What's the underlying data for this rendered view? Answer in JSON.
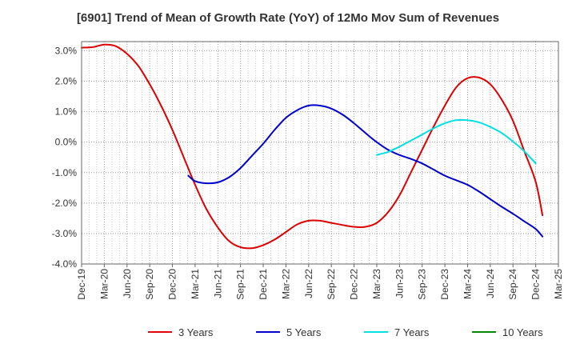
{
  "chart_data": {
    "type": "line",
    "title": "[6901]  Trend of Mean of Growth Rate (YoY) of 12Mo Mov Sum of Revenues",
    "xlabel": "",
    "ylabel": "",
    "ylim": [
      -4.0,
      3.3
    ],
    "yticks": [
      "3.0%",
      "2.0%",
      "1.0%",
      "0.0%",
      "-1.0%",
      "-2.0%",
      "-3.0%",
      "-4.0%"
    ],
    "ytick_values": [
      3.0,
      2.0,
      1.0,
      0.0,
      -1.0,
      -2.0,
      -3.0,
      -4.0
    ],
    "xticks": [
      "Dec-19",
      "Mar-20",
      "Jun-20",
      "Sep-20",
      "Dec-20",
      "Mar-21",
      "Jun-21",
      "Sep-21",
      "Dec-21",
      "Mar-22",
      "Jun-22",
      "Sep-22",
      "Dec-22",
      "Mar-23",
      "Jun-23",
      "Sep-23",
      "Dec-23",
      "Mar-24",
      "Jun-24",
      "Sep-24",
      "Dec-24",
      "Mar-25"
    ],
    "grid": true,
    "legend_position": "bottom",
    "series": [
      {
        "name": "3 Years",
        "color": "#dd0000",
        "points": [
          [
            0,
            3.1
          ],
          [
            0.5,
            3.12
          ],
          [
            1,
            3.2
          ],
          [
            1.5,
            3.15
          ],
          [
            2,
            2.9
          ],
          [
            2.5,
            2.5
          ],
          [
            3,
            1.9
          ],
          [
            3.5,
            1.2
          ],
          [
            4,
            0.4
          ],
          [
            4.5,
            -0.5
          ],
          [
            5,
            -1.4
          ],
          [
            5.5,
            -2.2
          ],
          [
            6,
            -2.8
          ],
          [
            6.5,
            -3.25
          ],
          [
            7,
            -3.45
          ],
          [
            7.5,
            -3.48
          ],
          [
            8,
            -3.38
          ],
          [
            8.5,
            -3.2
          ],
          [
            9,
            -2.95
          ],
          [
            9.5,
            -2.7
          ],
          [
            10,
            -2.58
          ],
          [
            10.5,
            -2.58
          ],
          [
            11,
            -2.65
          ],
          [
            11.5,
            -2.72
          ],
          [
            12,
            -2.78
          ],
          [
            12.5,
            -2.78
          ],
          [
            13,
            -2.65
          ],
          [
            13.5,
            -2.3
          ],
          [
            14,
            -1.75
          ],
          [
            14.5,
            -1.0
          ],
          [
            15,
            -0.25
          ],
          [
            15.5,
            0.5
          ],
          [
            16,
            1.2
          ],
          [
            16.5,
            1.8
          ],
          [
            17,
            2.1
          ],
          [
            17.5,
            2.12
          ],
          [
            18,
            1.9
          ],
          [
            18.5,
            1.4
          ],
          [
            19,
            0.7
          ],
          [
            19.5,
            -0.3
          ],
          [
            20,
            -1.3
          ],
          [
            20.3,
            -2.4
          ]
        ]
      },
      {
        "name": "5 Years",
        "color": "#0000cc",
        "points": [
          [
            4.7,
            -1.1
          ],
          [
            5,
            -1.28
          ],
          [
            5.5,
            -1.35
          ],
          [
            6,
            -1.32
          ],
          [
            6.5,
            -1.15
          ],
          [
            7,
            -0.85
          ],
          [
            7.5,
            -0.45
          ],
          [
            8,
            -0.05
          ],
          [
            8.5,
            0.4
          ],
          [
            9,
            0.8
          ],
          [
            9.5,
            1.05
          ],
          [
            10,
            1.2
          ],
          [
            10.5,
            1.2
          ],
          [
            11,
            1.1
          ],
          [
            11.5,
            0.9
          ],
          [
            12,
            0.62
          ],
          [
            12.5,
            0.3
          ],
          [
            13,
            0.0
          ],
          [
            13.5,
            -0.25
          ],
          [
            14,
            -0.42
          ],
          [
            14.5,
            -0.55
          ],
          [
            15,
            -0.7
          ],
          [
            15.5,
            -0.9
          ],
          [
            16,
            -1.1
          ],
          [
            16.5,
            -1.25
          ],
          [
            17,
            -1.4
          ],
          [
            17.5,
            -1.62
          ],
          [
            18,
            -1.87
          ],
          [
            18.5,
            -2.12
          ],
          [
            19,
            -2.35
          ],
          [
            19.5,
            -2.6
          ],
          [
            20,
            -2.85
          ],
          [
            20.3,
            -3.1
          ]
        ]
      },
      {
        "name": "7 Years",
        "color": "#00e0e0",
        "points": [
          [
            13,
            -0.42
          ],
          [
            13.5,
            -0.32
          ],
          [
            14,
            -0.15
          ],
          [
            14.5,
            0.05
          ],
          [
            15,
            0.25
          ],
          [
            15.5,
            0.45
          ],
          [
            16,
            0.62
          ],
          [
            16.5,
            0.72
          ],
          [
            17,
            0.72
          ],
          [
            17.5,
            0.65
          ],
          [
            18,
            0.5
          ],
          [
            18.5,
            0.3
          ],
          [
            19,
            0.02
          ],
          [
            19.5,
            -0.3
          ],
          [
            20,
            -0.7
          ]
        ]
      },
      {
        "name": "10 Years",
        "color": "#008800",
        "points": []
      }
    ]
  }
}
